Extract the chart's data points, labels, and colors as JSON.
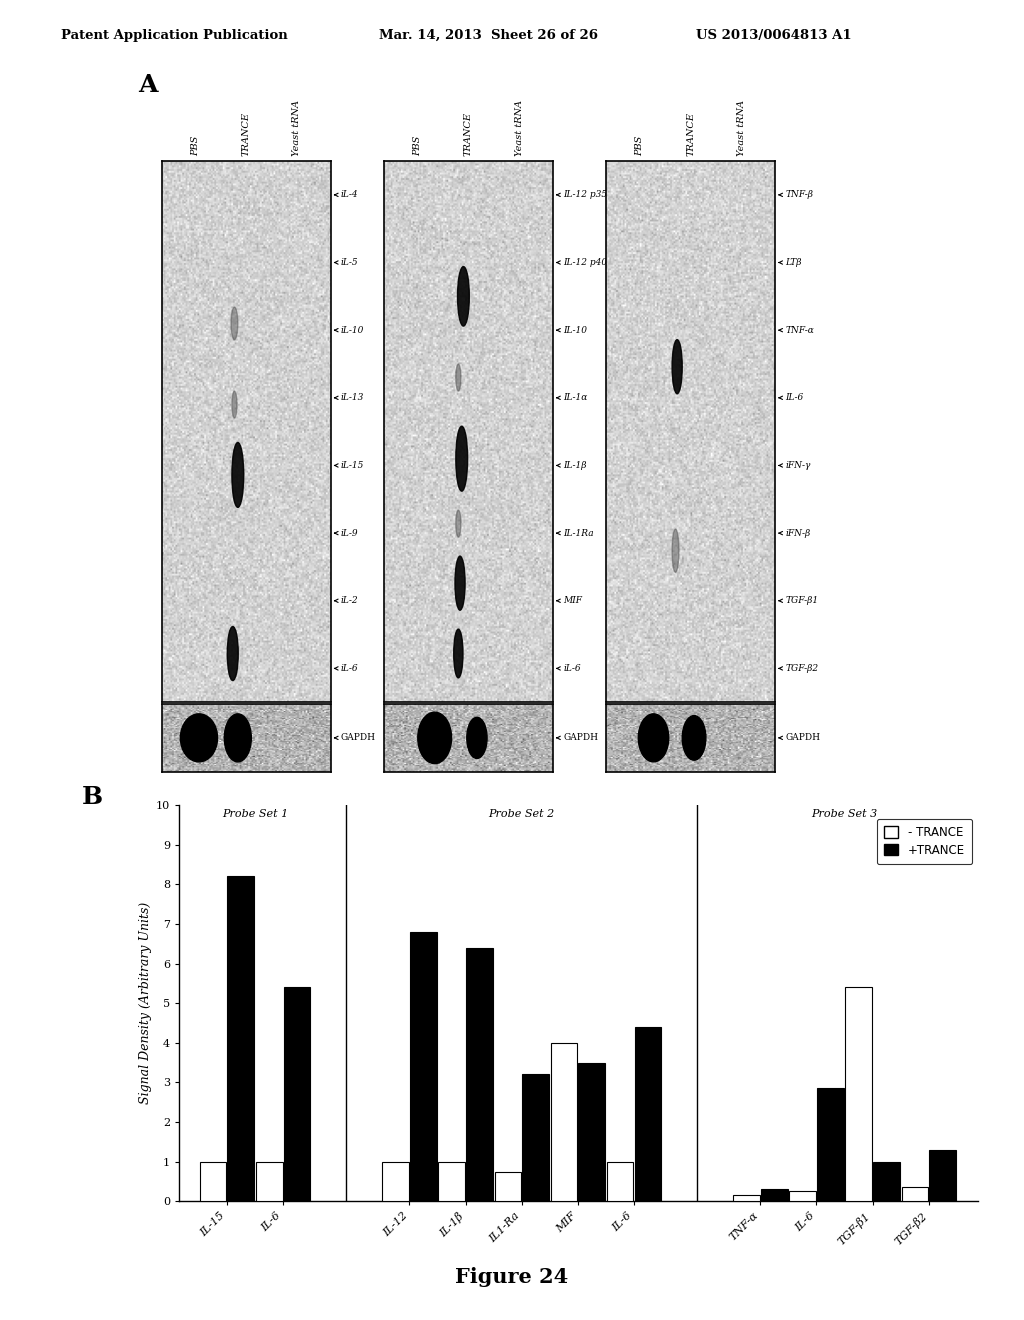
{
  "header_left": "Patent Application Publication",
  "header_mid": "Mar. 14, 2013  Sheet 26 of 26",
  "header_right": "US 2013/0064813 A1",
  "panel_A_label": "A",
  "panel_B_label": "B",
  "figure_label": "Figure 24",
  "blot_panel1_labels": [
    "iL-4",
    "iL-5",
    "iL-10",
    "iL-13",
    "iL-15",
    "iL-9",
    "iL-2",
    "iL-6"
  ],
  "blot_panel2_labels": [
    "IL-12 p35",
    "IL-12 p40",
    "IL-10",
    "IL-1α",
    "IL-1β",
    "IL-1Ra",
    "MIF",
    "iL-6"
  ],
  "blot_panel3_labels": [
    "TNF-β",
    "LTβ",
    "TNF-α",
    "IL-6",
    "iFN-γ",
    "iFN-β",
    "TGF-β1",
    "TGF-β2"
  ],
  "col_headers": [
    "PBS",
    "TRANCE",
    "Yeast tRNA"
  ],
  "probe_set_labels": [
    "Probe Set 1",
    "Probe Set 2",
    "Probe Set 3"
  ],
  "bar_categories": [
    [
      "IL-15",
      "IL-6"
    ],
    [
      "IL-12",
      "IL-1β",
      "IL1-Ra",
      "MIF",
      "IL-6"
    ],
    [
      "TNF-α",
      "IL-6",
      "TGF-β1",
      "TGF-β2"
    ]
  ],
  "no_trance_values": [
    [
      1.0,
      1.0
    ],
    [
      1.0,
      1.0,
      0.75,
      4.0,
      1.0
    ],
    [
      0.15,
      0.25,
      5.4,
      0.35
    ]
  ],
  "trance_values": [
    [
      8.2,
      5.4
    ],
    [
      6.8,
      6.4,
      3.2,
      3.5,
      4.4
    ],
    [
      0.3,
      2.85,
      1.0,
      1.3
    ]
  ],
  "ylabel": "Signal Density (Arbitrary Units)",
  "ylim": [
    0,
    10
  ],
  "yticks": [
    0,
    1,
    2,
    3,
    4,
    5,
    6,
    7,
    8,
    9,
    10
  ],
  "legend_no_trance": "- TRANCE",
  "legend_trance": "+TRANCE",
  "bar_width": 0.38,
  "no_trance_color": "white",
  "trance_color": "black",
  "bar_edge_color": "black"
}
